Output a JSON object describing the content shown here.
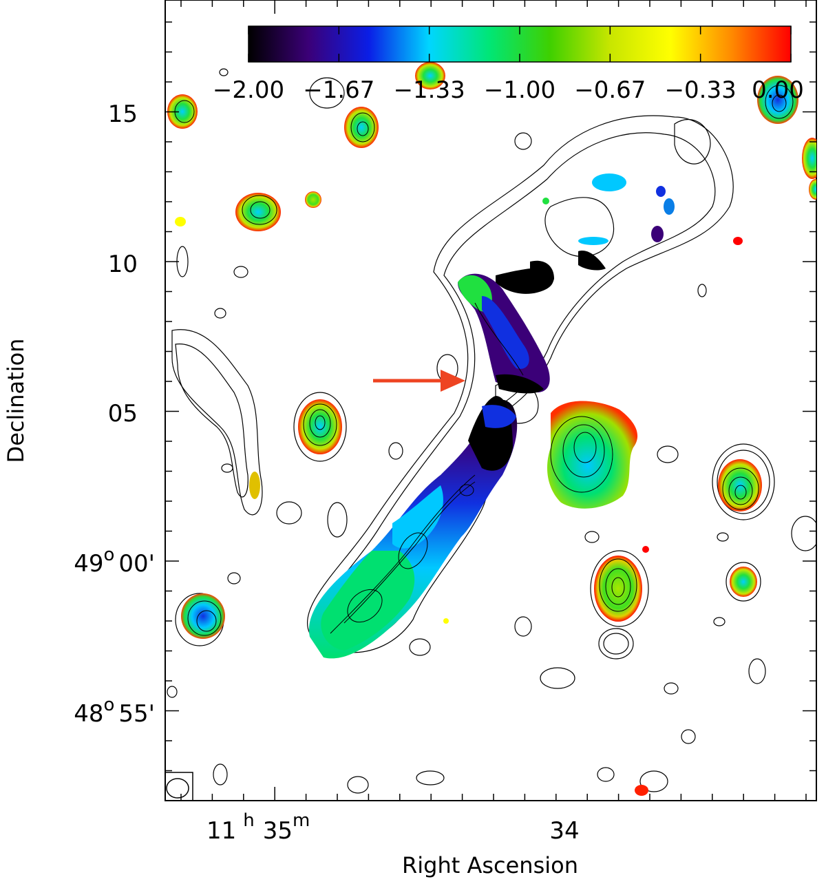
{
  "chart_data": {
    "type": "heatmap",
    "title": "",
    "xlabel": "Right Ascension",
    "ylabel": "Declination",
    "x_tick_labels": [
      {
        "h": "11",
        "h_unit": "h",
        "m": "35",
        "m_unit": "m"
      },
      {
        "m": "34"
      }
    ],
    "y_tick_labels": [
      "15",
      "10",
      "05",
      "49°00'",
      "05",
      "48°55'"
    ],
    "y_tick_parts": [
      {
        "text": "15"
      },
      {
        "text": "10"
      },
      {
        "text": "05"
      },
      {
        "deg": "49",
        "deg_sym": "o",
        "min": "00'"
      },
      {
        "text": "05"
      },
      {
        "deg": "48",
        "deg_sym": "o",
        "min": "55'"
      }
    ],
    "colorbar": {
      "min": -2.0,
      "max": 0.0,
      "ticks": [
        "−2.00",
        "−1.67",
        "−1.33",
        "−1.00",
        "−0.67",
        "−0.33",
        "0.00"
      ],
      "colormap": [
        "#000000",
        "#3b0078",
        "#0a1ee6",
        "#00d6ff",
        "#00e676",
        "#3fd000",
        "#c8e600",
        "#ffff00",
        "#ff8c00",
        "#ff0000"
      ],
      "placement": "top-inside"
    },
    "contour_color": "#000000",
    "annotations": [
      {
        "kind": "arrow",
        "color": "#ee4422",
        "direction": "right"
      }
    ],
    "beam": {
      "shape": "ellipse",
      "corner": "bottom-left"
    }
  }
}
